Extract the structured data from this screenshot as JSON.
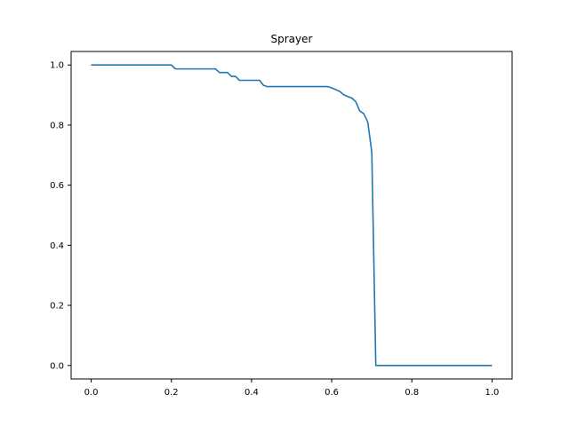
{
  "chart_data": {
    "type": "line",
    "title": "Sprayer",
    "xlabel": "",
    "ylabel": "",
    "xlim": [
      -0.05,
      1.05
    ],
    "ylim": [
      -0.045,
      1.045
    ],
    "grid": false,
    "legend": "none",
    "x_ticks": [
      0.0,
      0.2,
      0.4,
      0.6,
      0.8,
      1.0
    ],
    "x_tick_labels": [
      "0.0",
      "0.2",
      "0.4",
      "0.6",
      "0.8",
      "1.0"
    ],
    "y_ticks": [
      0.0,
      0.2,
      0.4,
      0.6,
      0.8,
      1.0
    ],
    "y_tick_labels": [
      "0.0",
      "0.2",
      "0.4",
      "0.6",
      "0.8",
      "1.0"
    ],
    "series": [
      {
        "color": "#1f77b4",
        "x": [
          0.0,
          0.2,
          0.21,
          0.31,
          0.32,
          0.34,
          0.35,
          0.36,
          0.37,
          0.42,
          0.43,
          0.44,
          0.59,
          0.6,
          0.62,
          0.63,
          0.64,
          0.65,
          0.66,
          0.67,
          0.68,
          0.69,
          0.7,
          0.71,
          0.72,
          1.0
        ],
        "y": [
          1.0,
          1.0,
          0.987,
          0.987,
          0.975,
          0.975,
          0.962,
          0.962,
          0.949,
          0.949,
          0.932,
          0.928,
          0.928,
          0.924,
          0.912,
          0.901,
          0.895,
          0.89,
          0.878,
          0.847,
          0.838,
          0.81,
          0.71,
          0.0,
          0.0,
          0.0
        ]
      }
    ]
  }
}
